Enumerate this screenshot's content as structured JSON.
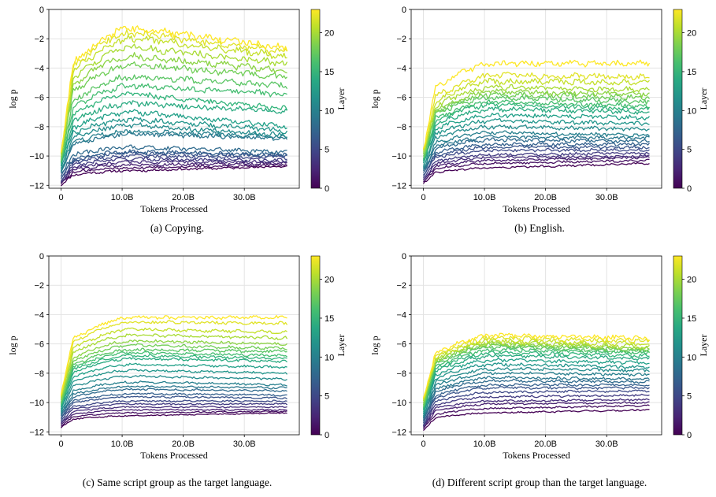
{
  "colorbar": {
    "label": "Layer",
    "min": 0,
    "max": 23,
    "ticks": [
      0,
      5,
      10,
      15,
      20
    ]
  },
  "chart_data": [
    {
      "type": "line",
      "caption": "(a) Copying.",
      "xlabel": "Tokens Processed",
      "ylabel": "log p",
      "xlim": [
        -2,
        39
      ],
      "ylim": [
        -12.2,
        0
      ],
      "xticks": [
        {
          "v": 0,
          "label": "0"
        },
        {
          "v": 10,
          "label": "10.0B"
        },
        {
          "v": 20,
          "label": "20.0B"
        },
        {
          "v": 30,
          "label": "30.0B"
        }
      ],
      "yticks": [
        0,
        -2,
        -4,
        -6,
        -8,
        -10,
        -12
      ],
      "grid": true,
      "layers": 24,
      "x": [
        0,
        1,
        2,
        3,
        4,
        6,
        8,
        10,
        12,
        15,
        18,
        21,
        24,
        27,
        30,
        33,
        35,
        37
      ],
      "final_values": [
        -10.7,
        -10.6,
        -10.5,
        -10.4,
        -10.3,
        -10.1,
        -10.0,
        -9.9,
        -9.7,
        -8.8,
        -8.7,
        -8.6,
        -8.3,
        -8.0,
        -7.0,
        -6.8,
        -5.8,
        -5.2,
        -4.6,
        -4.2,
        -3.7,
        -3.2,
        -2.9,
        -2.6
      ],
      "peak_values": [
        -11.0,
        -10.8,
        -10.6,
        -10.4,
        -10.2,
        -10.0,
        -9.8,
        -9.7,
        -9.4,
        -8.5,
        -8.3,
        -7.9,
        -7.5,
        -7.0,
        -6.4,
        -5.8,
        -5.2,
        -4.6,
        -3.8,
        -3.2,
        -2.6,
        -2.0,
        -1.6,
        -1.3
      ],
      "start_values": [
        -12.0,
        -11.9,
        -11.8,
        -11.8,
        -11.7,
        -11.6,
        -11.5,
        -11.4,
        -11.2,
        -11.1,
        -11.0,
        -10.9,
        -10.8,
        -10.7,
        -10.6,
        -10.5,
        -10.4,
        -10.3,
        -10.2,
        -10.1,
        -10.0,
        -9.9,
        -9.8,
        -9.7
      ],
      "noise": 0.22
    },
    {
      "type": "line",
      "caption": "(b) English.",
      "xlabel": "Tokens Processed",
      "ylabel": "log p",
      "xlim": [
        -2,
        39
      ],
      "ylim": [
        -12.2,
        0
      ],
      "xticks": [
        {
          "v": 0,
          "label": "0"
        },
        {
          "v": 10,
          "label": "10.0B"
        },
        {
          "v": 20,
          "label": "20.0B"
        },
        {
          "v": 30,
          "label": "30.0B"
        }
      ],
      "yticks": [
        0,
        -2,
        -4,
        -6,
        -8,
        -10,
        -12
      ],
      "grid": true,
      "layers": 24,
      "x": [
        0,
        1,
        2,
        3,
        4,
        6,
        8,
        10,
        12,
        15,
        18,
        21,
        24,
        27,
        30,
        33,
        35,
        37
      ],
      "final_values": [
        -10.5,
        -10.3,
        -10.1,
        -10.0,
        -9.8,
        -9.6,
        -9.4,
        -9.2,
        -9.0,
        -8.8,
        -8.6,
        -8.2,
        -7.8,
        -7.4,
        -7.0,
        -6.8,
        -6.6,
        -6.3,
        -6.0,
        -5.8,
        -5.5,
        -5.0,
        -4.6,
        -3.7
      ],
      "peak_values": [
        -10.8,
        -10.5,
        -10.3,
        -10.1,
        -9.9,
        -9.6,
        -9.4,
        -9.2,
        -8.9,
        -8.7,
        -8.4,
        -8.0,
        -7.6,
        -7.2,
        -6.8,
        -6.5,
        -6.3,
        -6.0,
        -5.8,
        -5.6,
        -5.3,
        -4.9,
        -4.5,
        -3.7
      ],
      "start_values": [
        -11.9,
        -11.8,
        -11.7,
        -11.6,
        -11.5,
        -11.4,
        -11.3,
        -11.2,
        -11.1,
        -11.0,
        -10.9,
        -10.8,
        -10.7,
        -10.6,
        -10.5,
        -10.4,
        -10.3,
        -10.2,
        -10.1,
        -10.0,
        -9.9,
        -9.8,
        -9.7,
        -9.6
      ],
      "noise": 0.18
    },
    {
      "type": "line",
      "caption": "(c) Same script group as the target language.",
      "xlabel": "Tokens Processed",
      "ylabel": "log p",
      "xlim": [
        -2,
        39
      ],
      "ylim": [
        -12.2,
        0
      ],
      "xticks": [
        {
          "v": 0,
          "label": "0"
        },
        {
          "v": 10,
          "label": "10.0B"
        },
        {
          "v": 20,
          "label": "20.0B"
        },
        {
          "v": 30,
          "label": "30.0B"
        }
      ],
      "yticks": [
        0,
        -2,
        -4,
        -6,
        -8,
        -10,
        -12
      ],
      "grid": true,
      "layers": 24,
      "x": [
        0,
        1,
        2,
        3,
        4,
        6,
        8,
        10,
        12,
        15,
        18,
        21,
        24,
        27,
        30,
        33,
        35,
        37
      ],
      "final_values": [
        -10.7,
        -10.6,
        -10.5,
        -10.3,
        -10.1,
        -9.9,
        -9.7,
        -9.5,
        -9.2,
        -9.0,
        -8.8,
        -8.4,
        -8.0,
        -7.6,
        -7.2,
        -7.0,
        -6.8,
        -6.5,
        -6.3,
        -6.0,
        -5.6,
        -5.2,
        -4.6,
        -4.2
      ],
      "peak_values": [
        -10.9,
        -10.7,
        -10.5,
        -10.3,
        -10.1,
        -9.9,
        -9.6,
        -9.4,
        -9.1,
        -8.9,
        -8.6,
        -8.2,
        -7.8,
        -7.4,
        -7.0,
        -6.8,
        -6.6,
        -6.4,
        -6.1,
        -5.8,
        -5.4,
        -5.0,
        -4.5,
        -4.2
      ],
      "start_values": [
        -11.7,
        -11.6,
        -11.5,
        -11.4,
        -11.3,
        -11.2,
        -11.1,
        -11.0,
        -10.9,
        -10.8,
        -10.7,
        -10.6,
        -10.5,
        -10.4,
        -10.3,
        -10.2,
        -10.1,
        -10.0,
        -9.9,
        -9.8,
        -9.7,
        -9.6,
        -9.5,
        -9.4
      ],
      "noise": 0.1
    },
    {
      "type": "line",
      "caption": "(d) Different script group than the target language.",
      "xlabel": "Tokens Processed",
      "ylabel": "log p",
      "xlim": [
        -2,
        39
      ],
      "ylim": [
        -12.2,
        0
      ],
      "xticks": [
        {
          "v": 0,
          "label": "0"
        },
        {
          "v": 10,
          "label": "10.0B"
        },
        {
          "v": 20,
          "label": "20.0B"
        },
        {
          "v": 30,
          "label": "30.0B"
        }
      ],
      "yticks": [
        0,
        -2,
        -4,
        -6,
        -8,
        -10,
        -12
      ],
      "grid": true,
      "layers": 24,
      "x": [
        0,
        1,
        2,
        3,
        4,
        6,
        8,
        10,
        12,
        15,
        18,
        21,
        24,
        27,
        30,
        33,
        35,
        37
      ],
      "final_values": [
        -10.5,
        -10.2,
        -10.0,
        -9.8,
        -9.5,
        -9.2,
        -9.0,
        -8.8,
        -8.6,
        -8.4,
        -8.1,
        -7.8,
        -7.6,
        -7.3,
        -7.0,
        -6.8,
        -6.6,
        -6.5,
        -6.4,
        -6.3,
        -6.2,
        -6.0,
        -5.8,
        -5.6
      ],
      "peak_values": [
        -10.7,
        -10.4,
        -10.1,
        -9.9,
        -9.6,
        -9.3,
        -9.0,
        -8.8,
        -8.5,
        -8.3,
        -8.0,
        -7.7,
        -7.4,
        -7.1,
        -6.8,
        -6.6,
        -6.4,
        -6.2,
        -6.1,
        -6.0,
        -5.9,
        -5.8,
        -5.6,
        -5.4
      ],
      "start_values": [
        -11.9,
        -11.8,
        -11.7,
        -11.6,
        -11.6,
        -11.5,
        -11.4,
        -11.3,
        -11.2,
        -11.1,
        -11.0,
        -10.9,
        -10.8,
        -10.7,
        -10.6,
        -10.5,
        -10.4,
        -10.3,
        -10.2,
        -10.1,
        -10.0,
        -9.9,
        -9.8,
        -9.7
      ],
      "noise": 0.14
    }
  ]
}
